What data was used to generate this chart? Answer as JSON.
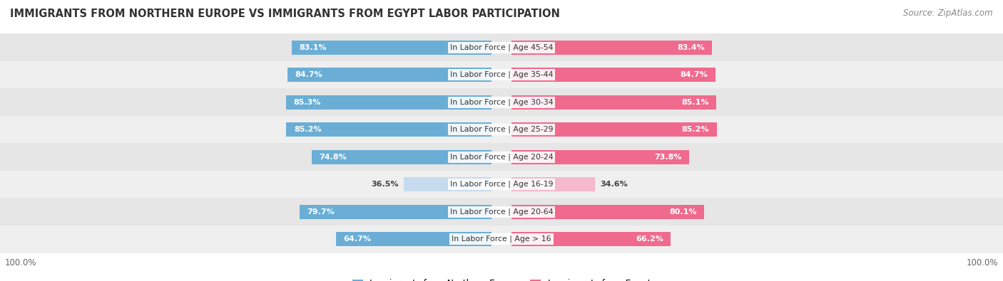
{
  "title": "IMMIGRANTS FROM NORTHERN EUROPE VS IMMIGRANTS FROM EGYPT LABOR PARTICIPATION",
  "source": "Source: ZipAtlas.com",
  "categories": [
    "In Labor Force | Age > 16",
    "In Labor Force | Age 20-64",
    "In Labor Force | Age 16-19",
    "In Labor Force | Age 20-24",
    "In Labor Force | Age 25-29",
    "In Labor Force | Age 30-34",
    "In Labor Force | Age 35-44",
    "In Labor Force | Age 45-54"
  ],
  "northern_europe_values": [
    64.7,
    79.7,
    36.5,
    74.8,
    85.2,
    85.3,
    84.7,
    83.1
  ],
  "egypt_values": [
    66.2,
    80.1,
    34.6,
    73.8,
    85.2,
    85.1,
    84.7,
    83.4
  ],
  "northern_europe_color_full": "#6AAED6",
  "northern_europe_color_light": "#C6DCEE",
  "egypt_color_full": "#F06A8E",
  "egypt_color_light": "#F5B8CC",
  "row_bg_even": "#EFEFEF",
  "row_bg_odd": "#E6E6E6",
  "legend_ne": "Immigrants from Northern Europe",
  "legend_eg": "Immigrants from Egypt",
  "full_threshold": 60.0,
  "figsize": [
    14.06,
    3.95
  ],
  "dpi": 100
}
